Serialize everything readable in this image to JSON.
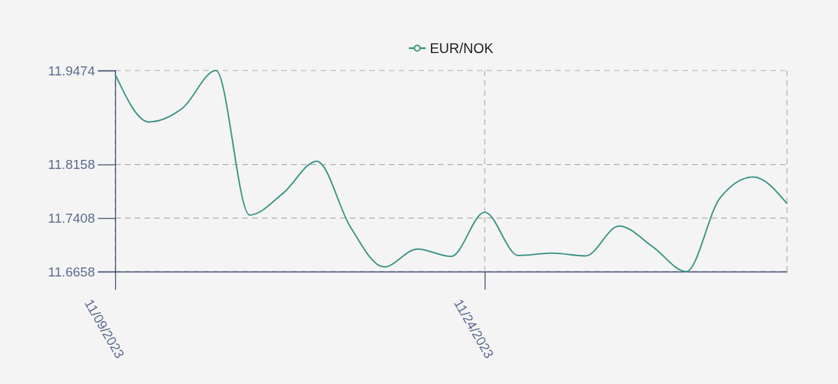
{
  "chart_data": {
    "type": "line",
    "categories": [
      "11/09/2023",
      null,
      null,
      null,
      null,
      null,
      null,
      null,
      null,
      null,
      null,
      "11/24/2023",
      null,
      null,
      null,
      null,
      null,
      null,
      null,
      null,
      null
    ],
    "series": [
      {
        "name": "EUR/NOK",
        "color": "#3a9484",
        "values": [
          11.9419,
          11.8754,
          11.8946,
          11.9474,
          11.745,
          11.7757,
          11.8204,
          11.7284,
          11.6723,
          11.6974,
          11.687,
          11.749,
          11.6883,
          11.6916,
          11.6877,
          11.7297,
          11.7007,
          11.6658,
          11.7685,
          11.7982,
          11.761
        ]
      }
    ],
    "ylim": [
      11.6658,
      11.9474
    ],
    "yticks": [
      11.6658,
      11.7408,
      11.8158,
      11.9474
    ],
    "grid": true,
    "legend": "top",
    "marker": "none",
    "line_style": "solid"
  }
}
